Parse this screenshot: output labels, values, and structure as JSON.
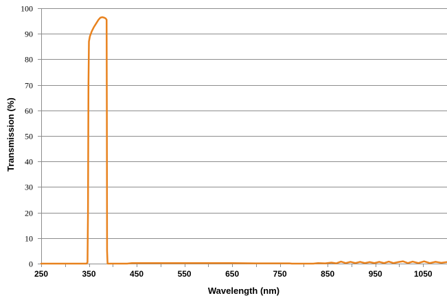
{
  "chart_data": {
    "type": "line",
    "title": "",
    "xlabel": "Wavelength (nm)",
    "ylabel": "Transmission (%)",
    "xlim": [
      250,
      1100
    ],
    "ylim": [
      0,
      100
    ],
    "x_ticks": [
      "250",
      "350",
      "450",
      "550",
      "650",
      "750",
      "850",
      "950",
      "1050"
    ],
    "y_ticks": [
      "0",
      "10",
      "20",
      "30",
      "40",
      "50",
      "60",
      "70",
      "80",
      "90",
      "100"
    ],
    "grid": "horizontal",
    "legend": "none",
    "series": [
      {
        "color": "#E8821E",
        "points": [
          [
            250,
            0
          ],
          [
            300,
            0
          ],
          [
            345,
            0
          ],
          [
            347,
            0.5
          ],
          [
            348,
            20
          ],
          [
            349,
            70
          ],
          [
            350,
            87
          ],
          [
            352,
            89
          ],
          [
            356,
            91
          ],
          [
            360,
            92.5
          ],
          [
            365,
            94
          ],
          [
            370,
            95.5
          ],
          [
            374,
            96.3
          ],
          [
            378,
            96.5
          ],
          [
            382,
            96.3
          ],
          [
            385,
            96
          ],
          [
            387,
            95.5
          ],
          [
            387.5,
            60
          ],
          [
            388,
            5
          ],
          [
            389,
            0
          ],
          [
            430,
            0
          ],
          [
            440,
            0.2
          ],
          [
            450,
            0.2
          ],
          [
            550,
            0.2
          ],
          [
            650,
            0.2
          ],
          [
            700,
            0.1
          ],
          [
            770,
            0.1
          ],
          [
            775,
            0
          ],
          [
            820,
            0
          ],
          [
            830,
            0.2
          ],
          [
            845,
            0.1
          ],
          [
            858,
            0.4
          ],
          [
            868,
            0.1
          ],
          [
            878,
            0.8
          ],
          [
            888,
            0.2
          ],
          [
            898,
            0.7
          ],
          [
            908,
            0.2
          ],
          [
            918,
            0.7
          ],
          [
            928,
            0.2
          ],
          [
            938,
            0.6
          ],
          [
            948,
            0.2
          ],
          [
            958,
            0.7
          ],
          [
            968,
            0.2
          ],
          [
            978,
            0.8
          ],
          [
            988,
            0.2
          ],
          [
            998,
            0.6
          ],
          [
            1008,
            0.9
          ],
          [
            1018,
            0.2
          ],
          [
            1028,
            0.8
          ],
          [
            1040,
            0.2
          ],
          [
            1052,
            0.9
          ],
          [
            1064,
            0.2
          ],
          [
            1076,
            0.7
          ],
          [
            1088,
            0.3
          ],
          [
            1100,
            0.6
          ]
        ]
      }
    ]
  }
}
